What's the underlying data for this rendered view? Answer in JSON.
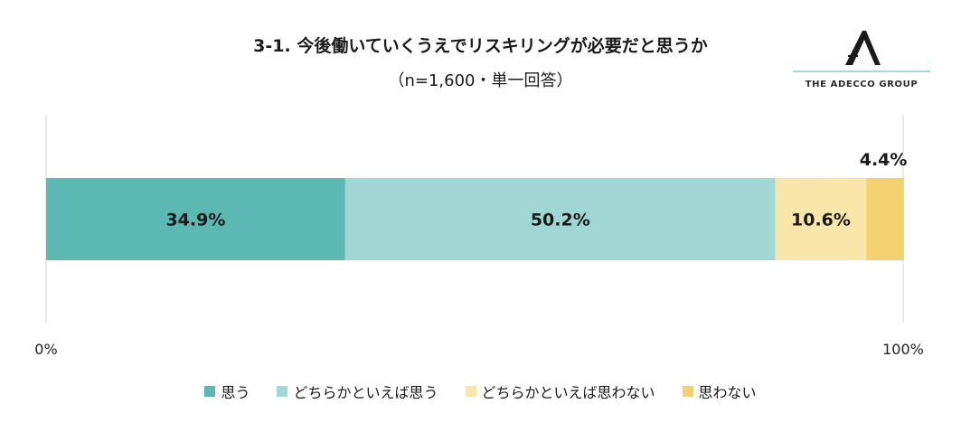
{
  "chart_data": {
    "type": "bar",
    "orientation": "horizontal",
    "stacked": true,
    "title": "3-1. 今後働いていくうえでリスキリングが必要だと思うか",
    "subtitle": "（n=1,600・単一回答）",
    "categories": [
      ""
    ],
    "series": [
      {
        "name": "思う",
        "values": [
          34.9
        ],
        "label": "34.9%",
        "color": "#5cb8b2"
      },
      {
        "name": "どちらかといえば思う",
        "values": [
          50.2
        ],
        "label": "50.2%",
        "color": "#a0d6d3"
      },
      {
        "name": "どちらかといえば思わない",
        "values": [
          10.6
        ],
        "label": "10.6%",
        "color": "#fae6a8"
      },
      {
        "name": "思わない",
        "values": [
          4.4
        ],
        "label": "4.4%",
        "color": "#f3d16e"
      }
    ],
    "xlim": [
      0,
      100
    ],
    "ticks": [
      {
        "value": 0,
        "label": "0%"
      },
      {
        "value": 100,
        "label": "100%"
      }
    ],
    "grid": false,
    "legend": "bottom"
  },
  "logo": {
    "text": "THE ADECCO GROUP",
    "mark_letter": "A",
    "color": "#1a1a1a",
    "rule_color": "#7fcdc8"
  }
}
